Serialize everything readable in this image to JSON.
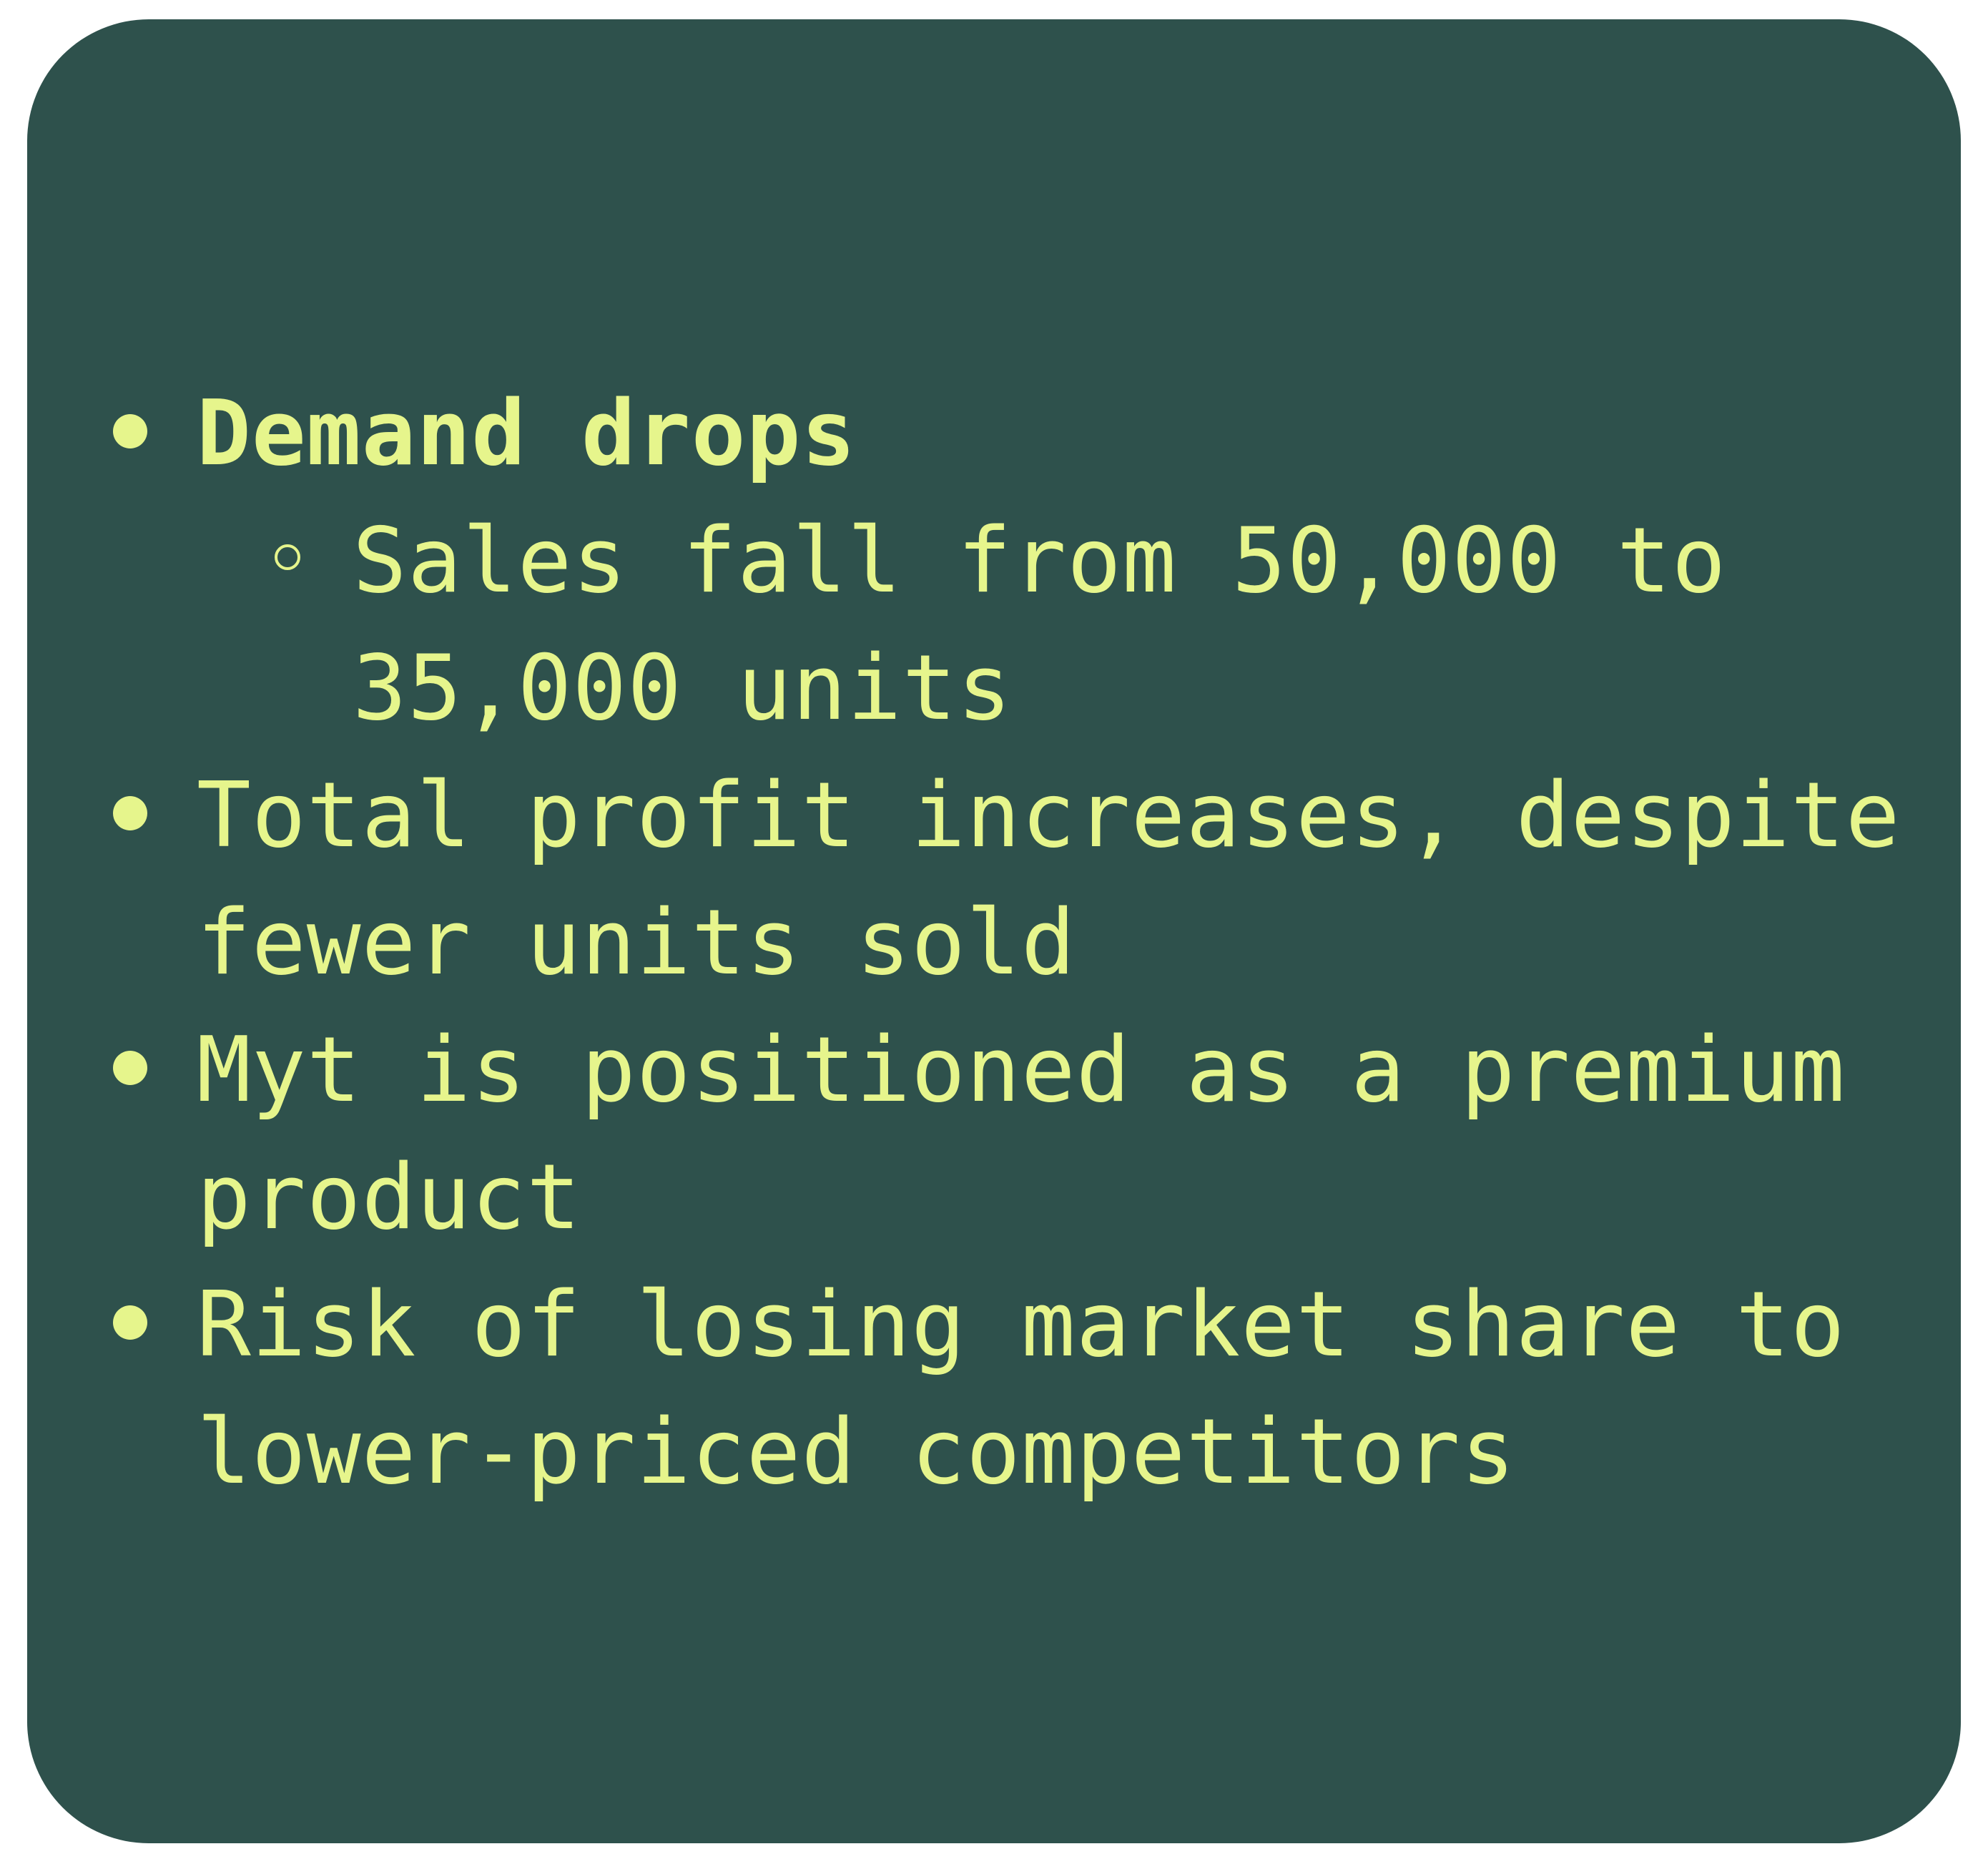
{
  "bullets": [
    {
      "text": "Demand drops",
      "bold": true
    },
    {
      "text": "Sales fall from 50,000 to 35,000 units",
      "level": 2
    },
    {
      "text": "Total profit increases, despite fewer units sold"
    },
    {
      "text": "Myt is positioned as a premium product"
    },
    {
      "text": "Risk of losing market share to lower-priced competitors"
    }
  ],
  "colors": {
    "card_background": "#2e514c",
    "text": "#e6f58c",
    "page_background": "#ffffff"
  },
  "icons": {
    "top_level_bullet": "filled-circle-bullet-icon",
    "sub_level_bullet": "hollow-circle-bullet-icon"
  }
}
